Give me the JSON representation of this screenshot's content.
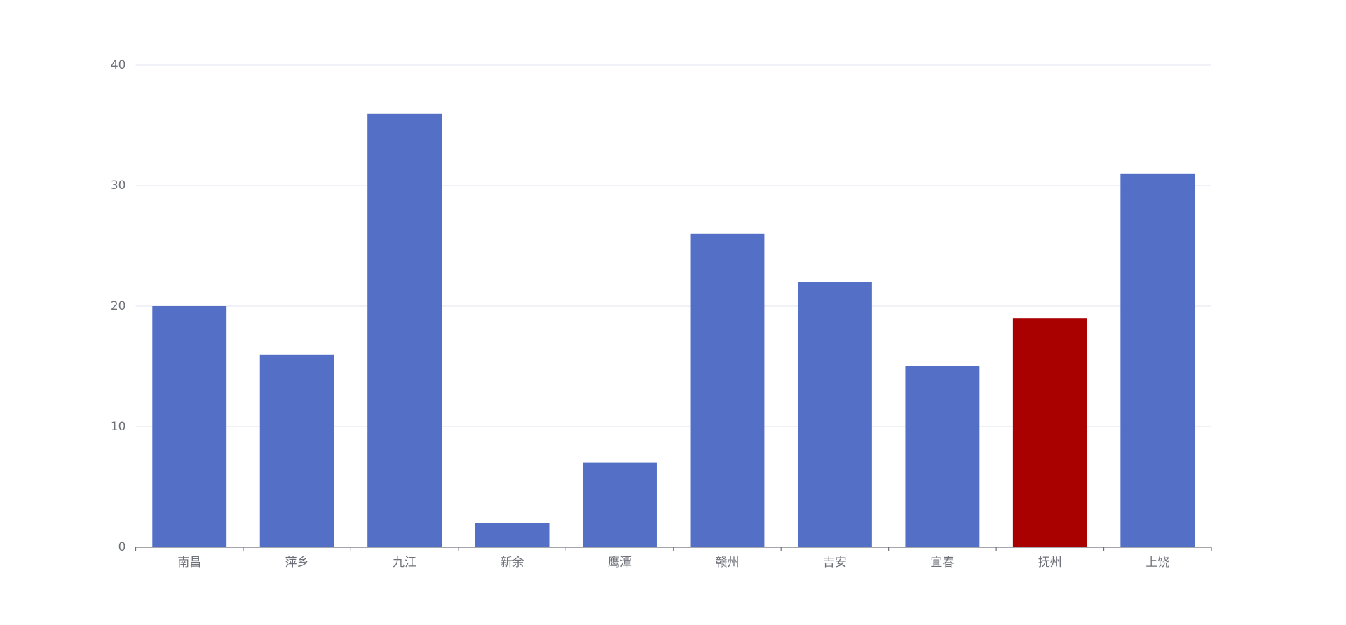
{
  "chart_data": {
    "type": "bar",
    "categories": [
      "南昌",
      "萍乡",
      "九江",
      "新余",
      "鹰潭",
      "赣州",
      "吉安",
      "宜春",
      "抚州",
      "上饶"
    ],
    "values": [
      20,
      16,
      36,
      2,
      7,
      26,
      22,
      15,
      19,
      31
    ],
    "colors": [
      "#5470c6",
      "#5470c6",
      "#5470c6",
      "#5470c6",
      "#5470c6",
      "#5470c6",
      "#5470c6",
      "#5470c6",
      "#a90000",
      "#5470c6"
    ],
    "ylim": [
      0,
      40
    ],
    "yticks": [
      0,
      10,
      20,
      30,
      40
    ],
    "grid": true
  }
}
